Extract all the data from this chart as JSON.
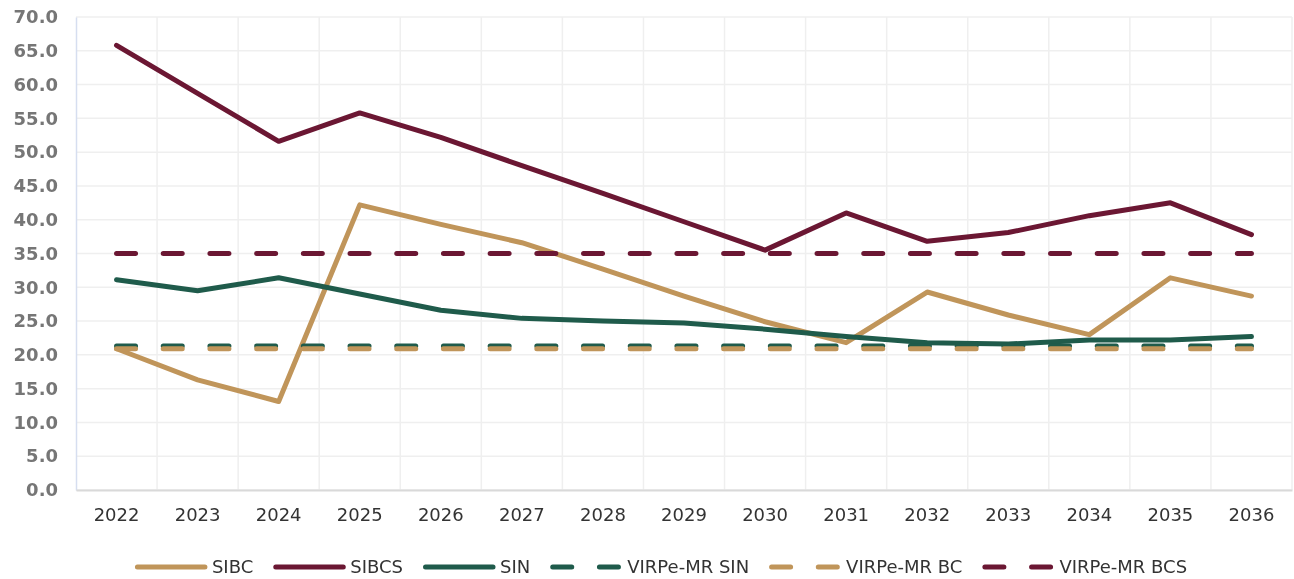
{
  "chart_data": {
    "type": "line",
    "categories": [
      "2022",
      "2023",
      "2024",
      "2025",
      "2026",
      "2027",
      "2028",
      "2029",
      "2030",
      "2031",
      "2032",
      "2033",
      "2034",
      "2035",
      "2036"
    ],
    "ylim": [
      0,
      70
    ],
    "yticks": [
      {
        "value": 0,
        "label": "0.0"
      },
      {
        "value": 5,
        "label": "5.0"
      },
      {
        "value": 10,
        "label": "10.0"
      },
      {
        "value": 15,
        "label": "15.0"
      },
      {
        "value": 20,
        "label": "20.0"
      },
      {
        "value": 25,
        "label": "25.0"
      },
      {
        "value": 30,
        "label": "30.0"
      },
      {
        "value": 35,
        "label": "35.0"
      },
      {
        "value": 40,
        "label": "40.0"
      },
      {
        "value": 45,
        "label": "45.0"
      },
      {
        "value": 50,
        "label": "50.0"
      },
      {
        "value": 55,
        "label": "55.0"
      },
      {
        "value": 60,
        "label": "60.0"
      },
      {
        "value": 65,
        "label": "65.0"
      },
      {
        "value": 70,
        "label": "70.0"
      }
    ],
    "grid": true,
    "legend": "bottom",
    "line_style": "solid",
    "series": [
      {
        "name": "SIBC",
        "color": "#c0955a",
        "values": [
          20.9,
          16.3,
          13.1,
          42.2,
          39.3,
          36.6,
          32.7,
          28.7,
          24.9,
          21.8,
          29.3,
          25.9,
          23.0,
          31.4,
          28.7
        ]
      },
      {
        "name": "SIBCS",
        "color": "#6b1733",
        "values": [
          65.8,
          58.7,
          51.6,
          55.8,
          52.2,
          48.0,
          43.9,
          39.7,
          35.5,
          41.0,
          36.8,
          38.1,
          40.6,
          42.5,
          37.8
        ]
      },
      {
        "name": "SIN",
        "color": "#1f5b4b",
        "values": [
          31.1,
          29.5,
          31.4,
          29.0,
          26.6,
          25.4,
          25.0,
          24.7,
          23.8,
          22.7,
          21.8,
          21.6,
          22.2,
          22.2,
          22.7
        ]
      },
      {
        "name": "VIRPe-MR SIN",
        "color": "#1f5b4b",
        "line_style": "dashed",
        "values": [
          21.3,
          21.3,
          21.3,
          21.3,
          21.3,
          21.3,
          21.3,
          21.3,
          21.3,
          21.3,
          21.3,
          21.3,
          21.3,
          21.3,
          21.3
        ]
      },
      {
        "name": "VIRPe-MR BC",
        "color": "#c0955a",
        "line_style": "dashed",
        "values": [
          20.9,
          20.9,
          20.9,
          20.9,
          20.9,
          20.9,
          20.9,
          20.9,
          20.9,
          20.9,
          20.9,
          20.9,
          20.9,
          20.9,
          20.9
        ]
      },
      {
        "name": "VIRPe-MR BCS",
        "color": "#6b1733",
        "line_style": "dashed",
        "values": [
          35.0,
          35.0,
          35.0,
          35.0,
          35.0,
          35.0,
          35.0,
          35.0,
          35.0,
          35.0,
          35.0,
          35.0,
          35.0,
          35.0,
          35.0
        ]
      }
    ]
  }
}
